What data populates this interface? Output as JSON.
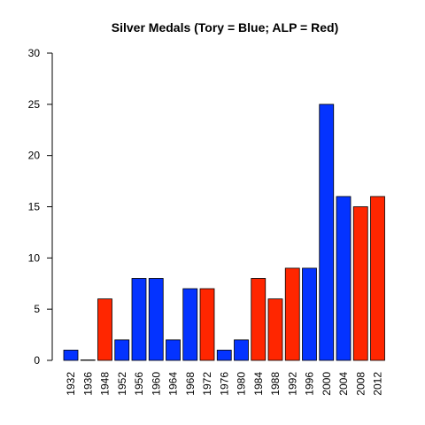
{
  "chart_data": {
    "type": "bar",
    "title": "Silver Medals (Tory = Blue; ALP = Red)",
    "xlabel": "",
    "ylabel": "",
    "ylim": [
      0,
      30
    ],
    "yticks": [
      0,
      5,
      10,
      15,
      20,
      25,
      30
    ],
    "categories": [
      "1932",
      "1936",
      "1948",
      "1952",
      "1956",
      "1960",
      "1964",
      "1968",
      "1972",
      "1976",
      "1980",
      "1984",
      "1988",
      "1992",
      "1996",
      "2000",
      "2004",
      "2008",
      "2012"
    ],
    "values": [
      1,
      0,
      6,
      2,
      8,
      8,
      2,
      7,
      7,
      1,
      2,
      8,
      6,
      9,
      9,
      25,
      16,
      15,
      16
    ],
    "party": [
      "Tory",
      "Tory",
      "ALP",
      "Tory",
      "Tory",
      "Tory",
      "Tory",
      "Tory",
      "ALP",
      "Tory",
      "Tory",
      "ALP",
      "ALP",
      "ALP",
      "Tory",
      "Tory",
      "Tory",
      "ALP",
      "ALP"
    ],
    "colors": {
      "Tory": "#0433ff",
      "ALP": "#ff2600"
    },
    "grid": false,
    "legend": "none"
  }
}
